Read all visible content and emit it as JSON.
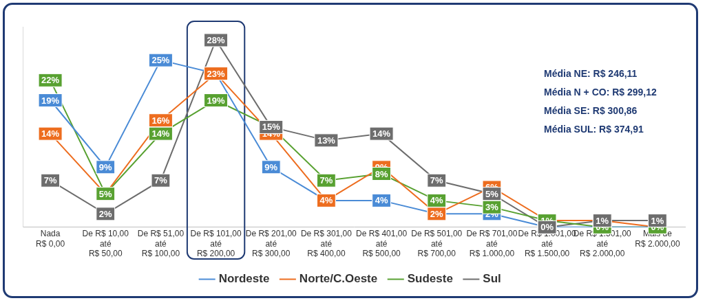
{
  "chart_data": {
    "type": "line",
    "categories": [
      [
        "Nada",
        "R$ 0,00"
      ],
      [
        "De R$ 10,00",
        "até",
        "R$ 50,00"
      ],
      [
        "De R$ 51,00",
        "até",
        "R$ 100,00"
      ],
      [
        "De R$ 101,00",
        "até",
        "R$ 200,00"
      ],
      [
        "De R$ 201,00",
        "até",
        "R$ 300,00"
      ],
      [
        "De R$ 301,00",
        "até",
        "R$ 400,00"
      ],
      [
        "De R$ 401,00",
        "até",
        "R$ 500,00"
      ],
      [
        "De R$ 501,00",
        "até",
        "R$ 700,00"
      ],
      [
        "De R$ 701,00",
        "até",
        "R$ 1.000,00"
      ],
      [
        "De R$ 1.001,00",
        "até",
        "R$ 1.500,00"
      ],
      [
        "De R$ 1.501,00",
        "até",
        "R$ 2.000,00"
      ],
      [
        "Mais de",
        "R$ 2.000,00"
      ]
    ],
    "series": [
      {
        "name": "Nordeste",
        "color": "#4a8bd6",
        "values": [
          19,
          9,
          25,
          23,
          9,
          4,
          4,
          2,
          2,
          0,
          0,
          0
        ],
        "value_labels": [
          "19%",
          "9%",
          "25%",
          "23%",
          "9%",
          "4%",
          "4%",
          "2%",
          "2%",
          "0%",
          "0%",
          "0%"
        ]
      },
      {
        "name": "Norte/C.Oeste",
        "color": "#ed6d1f",
        "values": [
          14,
          5,
          16,
          23,
          14,
          4,
          9,
          2,
          6,
          1,
          1,
          0
        ],
        "value_labels": [
          "14%",
          "5%",
          "16%",
          "23%",
          "14%",
          "4%",
          "9%",
          "2%",
          "6%",
          "1%",
          "1%",
          "0%"
        ]
      },
      {
        "name": "Sudeste",
        "color": "#58a131",
        "values": [
          22,
          5,
          14,
          19,
          15,
          7,
          8,
          4,
          3,
          1,
          0,
          0
        ],
        "value_labels": [
          "22%",
          "5%",
          "14%",
          "19%",
          "15%",
          "7%",
          "8%",
          "4%",
          "3%",
          "1%",
          "0%",
          "0%"
        ]
      },
      {
        "name": "Sul",
        "color": "#6d6d6d",
        "values": [
          7,
          2,
          7,
          28,
          15,
          13,
          14,
          7,
          5,
          0,
          1,
          1
        ],
        "value_labels": [
          "7%",
          "2%",
          "7%",
          "28%",
          "15%",
          "13%",
          "14%",
          "7%",
          "5%",
          "0%",
          "1%",
          "1%"
        ]
      }
    ],
    "annotations": [
      "Média NE: R$ 246,11",
      "Média N + CO: R$ 299,12",
      "Média SE: R$ 300,86",
      "Média SUL: R$ 374,91"
    ],
    "ylim": [
      0,
      30
    ],
    "grid": false,
    "legend": "bottom",
    "data_labels": true,
    "tick_labels": "x"
  }
}
